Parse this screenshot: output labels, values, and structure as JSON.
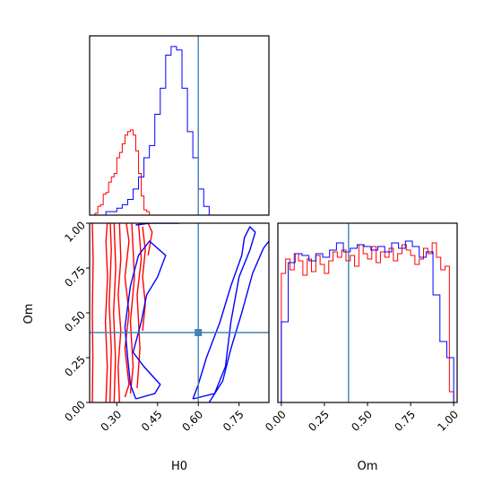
{
  "colors": {
    "red": "#ff0000",
    "blue": "#0000ff",
    "truth": "#4682b4",
    "frame": "#000000"
  },
  "chart_data": [
    {
      "type": "histogram",
      "panel": "top-left",
      "parameter": "H0",
      "xlim": [
        0.2,
        0.86
      ],
      "truth": 0.6,
      "series": [
        {
          "color": "red",
          "step": 0.01,
          "x_start": 0.2,
          "counts": [
            0,
            0,
            0.01,
            0.05,
            0.06,
            0.12,
            0.13,
            0.19,
            0.22,
            0.24,
            0.33,
            0.36,
            0.41,
            0.46,
            0.48,
            0.49,
            0.46,
            0.37,
            0.24,
            0.11,
            0.03,
            0.02,
            0
          ]
        },
        {
          "color": "blue",
          "step": 0.02,
          "x_start": 0.22,
          "counts": [
            0,
            0,
            0.02,
            0.02,
            0.04,
            0.06,
            0.09,
            0.15,
            0.22,
            0.33,
            0.4,
            0.58,
            0.73,
            0.92,
            0.97,
            0.95,
            0.73,
            0.48,
            0.33,
            0.15,
            0.05,
            0
          ]
        }
      ]
    },
    {
      "type": "contour",
      "panel": "bottom-left",
      "x_param": "H0",
      "y_param": "Om",
      "xlim": [
        0.2,
        0.86
      ],
      "ylim": [
        0.0,
        1.0
      ],
      "xticks": [
        "0.30",
        "0.45",
        "0.60",
        "0.75"
      ],
      "yticks": [
        "0.00",
        "0.25",
        "0.50",
        "0.75",
        "1.00"
      ],
      "truth": {
        "x": 0.6,
        "y": 0.39
      },
      "series": [
        {
          "color": "red",
          "levels": [
            [
              [
                0.21,
                0.0
              ],
              [
                0.212,
                0.25
              ],
              [
                0.21,
                0.5
              ],
              [
                0.213,
                0.8
              ],
              [
                0.21,
                1.0
              ]
            ],
            [
              [
                0.26,
                0.0
              ],
              [
                0.265,
                0.2
              ],
              [
                0.258,
                0.45
              ],
              [
                0.266,
                0.7
              ],
              [
                0.26,
                0.9
              ],
              [
                0.265,
                1.0
              ]
            ],
            [
              [
                0.275,
                0.0
              ],
              [
                0.28,
                0.3
              ],
              [
                0.272,
                0.55
              ],
              [
                0.28,
                0.85
              ],
              [
                0.276,
                1.0
              ]
            ],
            [
              [
                0.29,
                0.0
              ],
              [
                0.295,
                0.25
              ],
              [
                0.288,
                0.5
              ],
              [
                0.296,
                0.75
              ],
              [
                0.29,
                1.0
              ]
            ],
            [
              [
                0.31,
                0.0
              ],
              [
                0.305,
                0.2
              ],
              [
                0.315,
                0.4
              ],
              [
                0.305,
                0.6
              ],
              [
                0.315,
                0.8
              ],
              [
                0.31,
                1.0
              ]
            ],
            [
              [
                0.33,
                0.03
              ],
              [
                0.345,
                0.1
              ],
              [
                0.33,
                0.3
              ],
              [
                0.345,
                0.5
              ],
              [
                0.33,
                0.7
              ],
              [
                0.345,
                0.9
              ],
              [
                0.335,
                1.0
              ]
            ],
            [
              [
                0.35,
                0.05
              ],
              [
                0.36,
                0.2
              ],
              [
                0.35,
                0.45
              ],
              [
                0.365,
                0.7
              ],
              [
                0.355,
                1.0
              ]
            ],
            [
              [
                0.375,
                0.08
              ],
              [
                0.385,
                0.3
              ],
              [
                0.375,
                0.6
              ],
              [
                0.39,
                0.8
              ],
              [
                0.38,
                1.0
              ]
            ],
            [
              [
                0.395,
                0.4
              ],
              [
                0.405,
                0.55
              ],
              [
                0.395,
                0.7
              ],
              [
                0.405,
                0.85
              ],
              [
                0.395,
                0.98
              ]
            ],
            [
              [
                0.415,
                0.82
              ],
              [
                0.43,
                0.95
              ],
              [
                0.415,
                1.0
              ]
            ]
          ]
        },
        {
          "color": "blue",
          "levels": [
            [
              [
                0.37,
                0.02
              ],
              [
                0.44,
                0.05
              ],
              [
                0.46,
                0.1
              ],
              [
                0.4,
                0.2
              ],
              [
                0.36,
                0.28
              ],
              [
                0.39,
                0.45
              ],
              [
                0.41,
                0.6
              ],
              [
                0.45,
                0.7
              ],
              [
                0.48,
                0.82
              ],
              [
                0.42,
                0.9
              ],
              [
                0.38,
                0.82
              ],
              [
                0.35,
                0.65
              ],
              [
                0.33,
                0.42
              ],
              [
                0.34,
                0.25
              ],
              [
                0.35,
                0.1
              ],
              [
                0.37,
                0.02
              ]
            ],
            [
              [
                0.58,
                0.02
              ],
              [
                0.66,
                0.05
              ],
              [
                0.7,
                0.2
              ],
              [
                0.72,
                0.45
              ],
              [
                0.75,
                0.7
              ],
              [
                0.79,
                0.85
              ],
              [
                0.81,
                0.95
              ],
              [
                0.79,
                0.98
              ],
              [
                0.77,
                0.92
              ],
              [
                0.76,
                0.82
              ],
              [
                0.72,
                0.65
              ],
              [
                0.68,
                0.45
              ],
              [
                0.63,
                0.25
              ],
              [
                0.6,
                0.1
              ],
              [
                0.58,
                0.02
              ]
            ],
            [
              [
                0.64,
                0.0
              ],
              [
                0.69,
                0.12
              ],
              [
                0.72,
                0.3
              ],
              [
                0.76,
                0.5
              ],
              [
                0.8,
                0.72
              ],
              [
                0.84,
                0.86
              ],
              [
                0.86,
                0.9
              ]
            ],
            [
              [
                0.37,
                0.99
              ],
              [
                0.42,
                1.0
              ],
              [
                0.49,
                1.0
              ],
              [
                0.53,
                1.0
              ]
            ]
          ]
        }
      ]
    },
    {
      "type": "histogram",
      "panel": "bottom-right",
      "parameter": "Om",
      "xlim": [
        -0.02,
        1.02
      ],
      "xticks": [
        "0.00",
        "0.25",
        "0.50",
        "0.75",
        "1.00"
      ],
      "truth": 0.39,
      "series": [
        {
          "color": "red",
          "step": 0.025,
          "x_start": 0.0,
          "counts": [
            0.72,
            0.8,
            0.74,
            0.83,
            0.79,
            0.71,
            0.8,
            0.73,
            0.82,
            0.77,
            0.72,
            0.79,
            0.84,
            0.81,
            0.85,
            0.79,
            0.82,
            0.76,
            0.88,
            0.83,
            0.8,
            0.87,
            0.78,
            0.84,
            0.81,
            0.86,
            0.79,
            0.83,
            0.88,
            0.85,
            0.82,
            0.77,
            0.8,
            0.86,
            0.83,
            0.89,
            0.81,
            0.74,
            0.76,
            0.06
          ]
        },
        {
          "color": "blue",
          "step": 0.04,
          "x_start": 0.0,
          "counts": [
            0.45,
            0.78,
            0.83,
            0.82,
            0.79,
            0.83,
            0.81,
            0.85,
            0.89,
            0.84,
            0.86,
            0.88,
            0.87,
            0.85,
            0.87,
            0.84,
            0.89,
            0.86,
            0.9,
            0.87,
            0.81,
            0.84,
            0.6,
            0.34,
            0.25
          ]
        }
      ]
    }
  ],
  "labels": {
    "x_left": "H0",
    "y_left": "Om",
    "x_right": "Om"
  }
}
